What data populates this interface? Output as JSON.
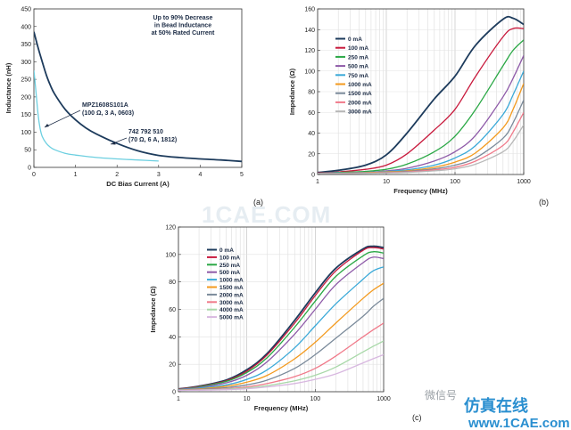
{
  "watermarks": {
    "center": "1CAE.COM",
    "wechat": "微信号",
    "brand_cn": "仿真在线",
    "site": "www.1CAE.com"
  },
  "chart_data": [
    {
      "type": "line",
      "panel_label": "(a)",
      "title": "",
      "annotation": [
        "Up to 90% Decrease",
        "in Bead Inductance",
        "at 50% Rated Current"
      ],
      "xlabel": "DC Bias Current (A)",
      "ylabel": "Inductance (nH)",
      "xscale": "linear",
      "xlim": [
        0,
        5
      ],
      "ylim": [
        0,
        450
      ],
      "xticks": [
        0,
        1,
        2,
        3,
        4,
        5
      ],
      "yticks": [
        0,
        50,
        100,
        150,
        200,
        250,
        300,
        350,
        400,
        450
      ],
      "grid": false,
      "series": [
        {
          "name": "742 792 510\n(70 Ω, 6 A, 1812)",
          "color": "#1d3b5c",
          "x": [
            0,
            0.1,
            0.2,
            0.3,
            0.4,
            0.5,
            0.75,
            1.0,
            1.25,
            1.5,
            2.0,
            2.5,
            3.0,
            3.5,
            4.0,
            4.5,
            5.0
          ],
          "y": [
            385,
            340,
            300,
            262,
            232,
            208,
            165,
            135,
            112,
            95,
            68,
            47,
            34,
            28,
            24,
            21,
            17
          ]
        },
        {
          "name": "MPZ1608S101A\n(100 Ω, 3 A, 0603)",
          "color": "#6ccfe0",
          "x": [
            0,
            0.05,
            0.1,
            0.15,
            0.2,
            0.3,
            0.4,
            0.5,
            0.75,
            1.0,
            1.5,
            2.0,
            2.5,
            3.0
          ],
          "y": [
            275,
            215,
            150,
            110,
            88,
            68,
            57,
            50,
            40,
            35,
            28,
            24,
            21,
            18
          ]
        }
      ]
    },
    {
      "type": "line",
      "panel_label": "(b)",
      "title": "",
      "xlabel": "Frequency (MHz)",
      "ylabel": "Impedance (Ω)",
      "xscale": "log",
      "xlim": [
        1,
        1000
      ],
      "ylim": [
        0,
        160
      ],
      "xticks": [
        1,
        10,
        100,
        1000
      ],
      "yticks": [
        0,
        20,
        40,
        60,
        80,
        100,
        120,
        140,
        160
      ],
      "grid": true,
      "legend": "top-left",
      "x": [
        1,
        2,
        5,
        10,
        20,
        50,
        100,
        200,
        500,
        700,
        1000
      ],
      "series": [
        {
          "name": "0 mA",
          "color": "#1d3b5c",
          "values": [
            2,
            4,
            9,
            19,
            40,
            73,
            95,
            125,
            150,
            151,
            145
          ]
        },
        {
          "name": "100 mA",
          "color": "#c8193c",
          "values": [
            1.5,
            2.5,
            5,
            9,
            20,
            43,
            63,
            95,
            133,
            141,
            141
          ]
        },
        {
          "name": "250 mA",
          "color": "#2aa845",
          "values": [
            1,
            2,
            3,
            5,
            10,
            22,
            37,
            63,
            105,
            120,
            130
          ]
        },
        {
          "name": "500 mA",
          "color": "#8e5aa8",
          "values": [
            1,
            1.5,
            2,
            3.5,
            6,
            13,
            22,
            38,
            75,
            93,
            115
          ]
        },
        {
          "name": "750 mA",
          "color": "#3aa9d8",
          "values": [
            1,
            1.5,
            2,
            3,
            4.5,
            9,
            16,
            28,
            58,
            77,
            100
          ]
        },
        {
          "name": "1000 mA",
          "color": "#f39a1e",
          "values": [
            1,
            1.2,
            1.8,
            2.5,
            3.5,
            7,
            12,
            21,
            45,
            63,
            88
          ]
        },
        {
          "name": "1500 mA",
          "color": "#7a8a9a",
          "values": [
            1,
            1.2,
            1.5,
            2,
            3,
            5.5,
            9,
            16,
            35,
            50,
            72
          ]
        },
        {
          "name": "2000 mA",
          "color": "#f07a8a",
          "values": [
            1,
            1.1,
            1.4,
            1.8,
            2.5,
            4.5,
            7,
            13,
            28,
            41,
            60
          ]
        },
        {
          "name": "3000 mA",
          "color": "#b8b8b8",
          "values": [
            1,
            1,
            1.2,
            1.5,
            2,
            3.5,
            5.5,
            10,
            22,
            32,
            48
          ]
        }
      ]
    },
    {
      "type": "line",
      "panel_label": "(c)",
      "title": "",
      "xlabel": "Frequency (MHz)",
      "ylabel": "Impedance (Ω)",
      "xscale": "log",
      "xlim": [
        1,
        1000
      ],
      "ylim": [
        0,
        120
      ],
      "xticks": [
        1,
        10,
        100,
        1000
      ],
      "yticks": [
        0,
        20,
        40,
        60,
        80,
        100,
        120
      ],
      "grid": true,
      "legend": "top-left",
      "x": [
        1,
        2,
        5,
        10,
        20,
        50,
        100,
        200,
        500,
        700,
        1000
      ],
      "series": [
        {
          "name": "0 mA",
          "color": "#1d3b5c",
          "values": [
            2,
            4,
            8.5,
            16,
            28,
            52,
            72,
            90,
            104,
            106,
            105
          ]
        },
        {
          "name": "100 mA",
          "color": "#c8193c",
          "values": [
            2,
            3.8,
            8,
            15,
            27,
            50,
            70,
            88,
            103,
            105,
            104
          ]
        },
        {
          "name": "250 mA",
          "color": "#2aa845",
          "values": [
            1.8,
            3.5,
            7.5,
            14,
            25,
            47,
            66,
            84,
            99,
            102,
            101
          ]
        },
        {
          "name": "500 mA",
          "color": "#8e5aa8",
          "values": [
            1.6,
            3,
            6.5,
            12,
            22,
            42,
            60,
            78,
            94,
            98,
            97
          ]
        },
        {
          "name": "1000 mA",
          "color": "#3aa9d8",
          "values": [
            1.4,
            2.5,
            5,
            9,
            16,
            32,
            48,
            64,
            82,
            88,
            91
          ]
        },
        {
          "name": "1500 mA",
          "color": "#f39a1e",
          "values": [
            1.2,
            2,
            4,
            7,
            12,
            24,
            36,
            50,
            68,
            74,
            79
          ]
        },
        {
          "name": "2000 mA",
          "color": "#7a8a9a",
          "values": [
            1.1,
            1.7,
            3,
            5,
            8.5,
            17,
            27,
            39,
            55,
            62,
            68
          ]
        },
        {
          "name": "3000 mA",
          "color": "#f07a8a",
          "values": [
            1,
            1.4,
            2.2,
            3.5,
            6,
            11,
            17,
            26,
            40,
            45,
            50
          ]
        },
        {
          "name": "4000 mA",
          "color": "#a8d8a8",
          "values": [
            1,
            1.2,
            1.8,
            2.7,
            4.5,
            8,
            12,
            18,
            29,
            33,
            37
          ]
        },
        {
          "name": "5000 mA",
          "color": "#d8b8e0",
          "values": [
            1,
            1.1,
            1.5,
            2.2,
            3.5,
            6,
            9,
            13,
            21,
            24,
            27
          ]
        }
      ]
    }
  ]
}
